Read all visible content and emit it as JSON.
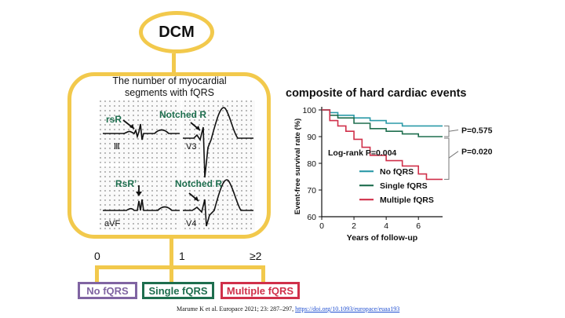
{
  "diagram": {
    "root_label": "DCM",
    "panel_title_line1": "The number of myocardial",
    "panel_title_line2": "segments with fQRS",
    "ecg_labels": {
      "rsr": "rsR",
      "notched_r_top": "Notched R",
      "rsr_prime": "RsR’",
      "notched_r_bottom": "Notched R",
      "lead_iii": "Ⅲ",
      "lead_v3": "V3",
      "lead_avf": "aVF",
      "lead_v4": "V4"
    },
    "branch_counts": [
      "0",
      "1",
      "≥2"
    ],
    "categories": [
      {
        "label": "No fQRS",
        "color": "#8064a2"
      },
      {
        "label": "Single fQRS",
        "color": "#1e6e4e"
      },
      {
        "label": "Multiple fQRS",
        "color": "#d0304a"
      }
    ],
    "accent_color": "#f2c94c",
    "label_green": "#1e6e4e"
  },
  "chart_data": {
    "type": "line",
    "title": "composite of hard cardiac events",
    "xlabel": "Years of follow-up",
    "ylabel": "Event-free survival rate (%)",
    "xlim": [
      0,
      7.5
    ],
    "ylim": [
      60,
      100
    ],
    "xticks": [
      0,
      2,
      4,
      6
    ],
    "yticks": [
      60,
      70,
      80,
      90,
      100
    ],
    "annotation": "Log-rank P=0.004",
    "pvalues": [
      "P=0.575",
      "P=0.020"
    ],
    "series": [
      {
        "name": "No fQRS",
        "color": "#2b9aa8",
        "x": [
          0,
          0.5,
          1,
          2,
          3,
          4,
          5,
          6,
          7.5
        ],
        "y": [
          100,
          99,
          98,
          97,
          96,
          95,
          94,
          94,
          94
        ]
      },
      {
        "name": "Single fQRS",
        "color": "#1e6e4e",
        "x": [
          0,
          0.5,
          1,
          2,
          3,
          4,
          5,
          6,
          7.5
        ],
        "y": [
          100,
          98,
          97,
          95,
          93,
          92,
          91,
          90,
          90
        ]
      },
      {
        "name": "Multiple fQRS",
        "color": "#d0304a",
        "x": [
          0,
          0.5,
          1,
          1.5,
          2,
          2.5,
          3,
          4,
          5,
          6,
          6.5,
          7.5
        ],
        "y": [
          100,
          96,
          94,
          92,
          89,
          86,
          83,
          81,
          79,
          76,
          74,
          74
        ]
      }
    ]
  },
  "citation": {
    "text": "Marume K et al. Europace 2021; 23: 287–297, ",
    "link": "https://doi.org/10.1093/europace/euaa193"
  }
}
